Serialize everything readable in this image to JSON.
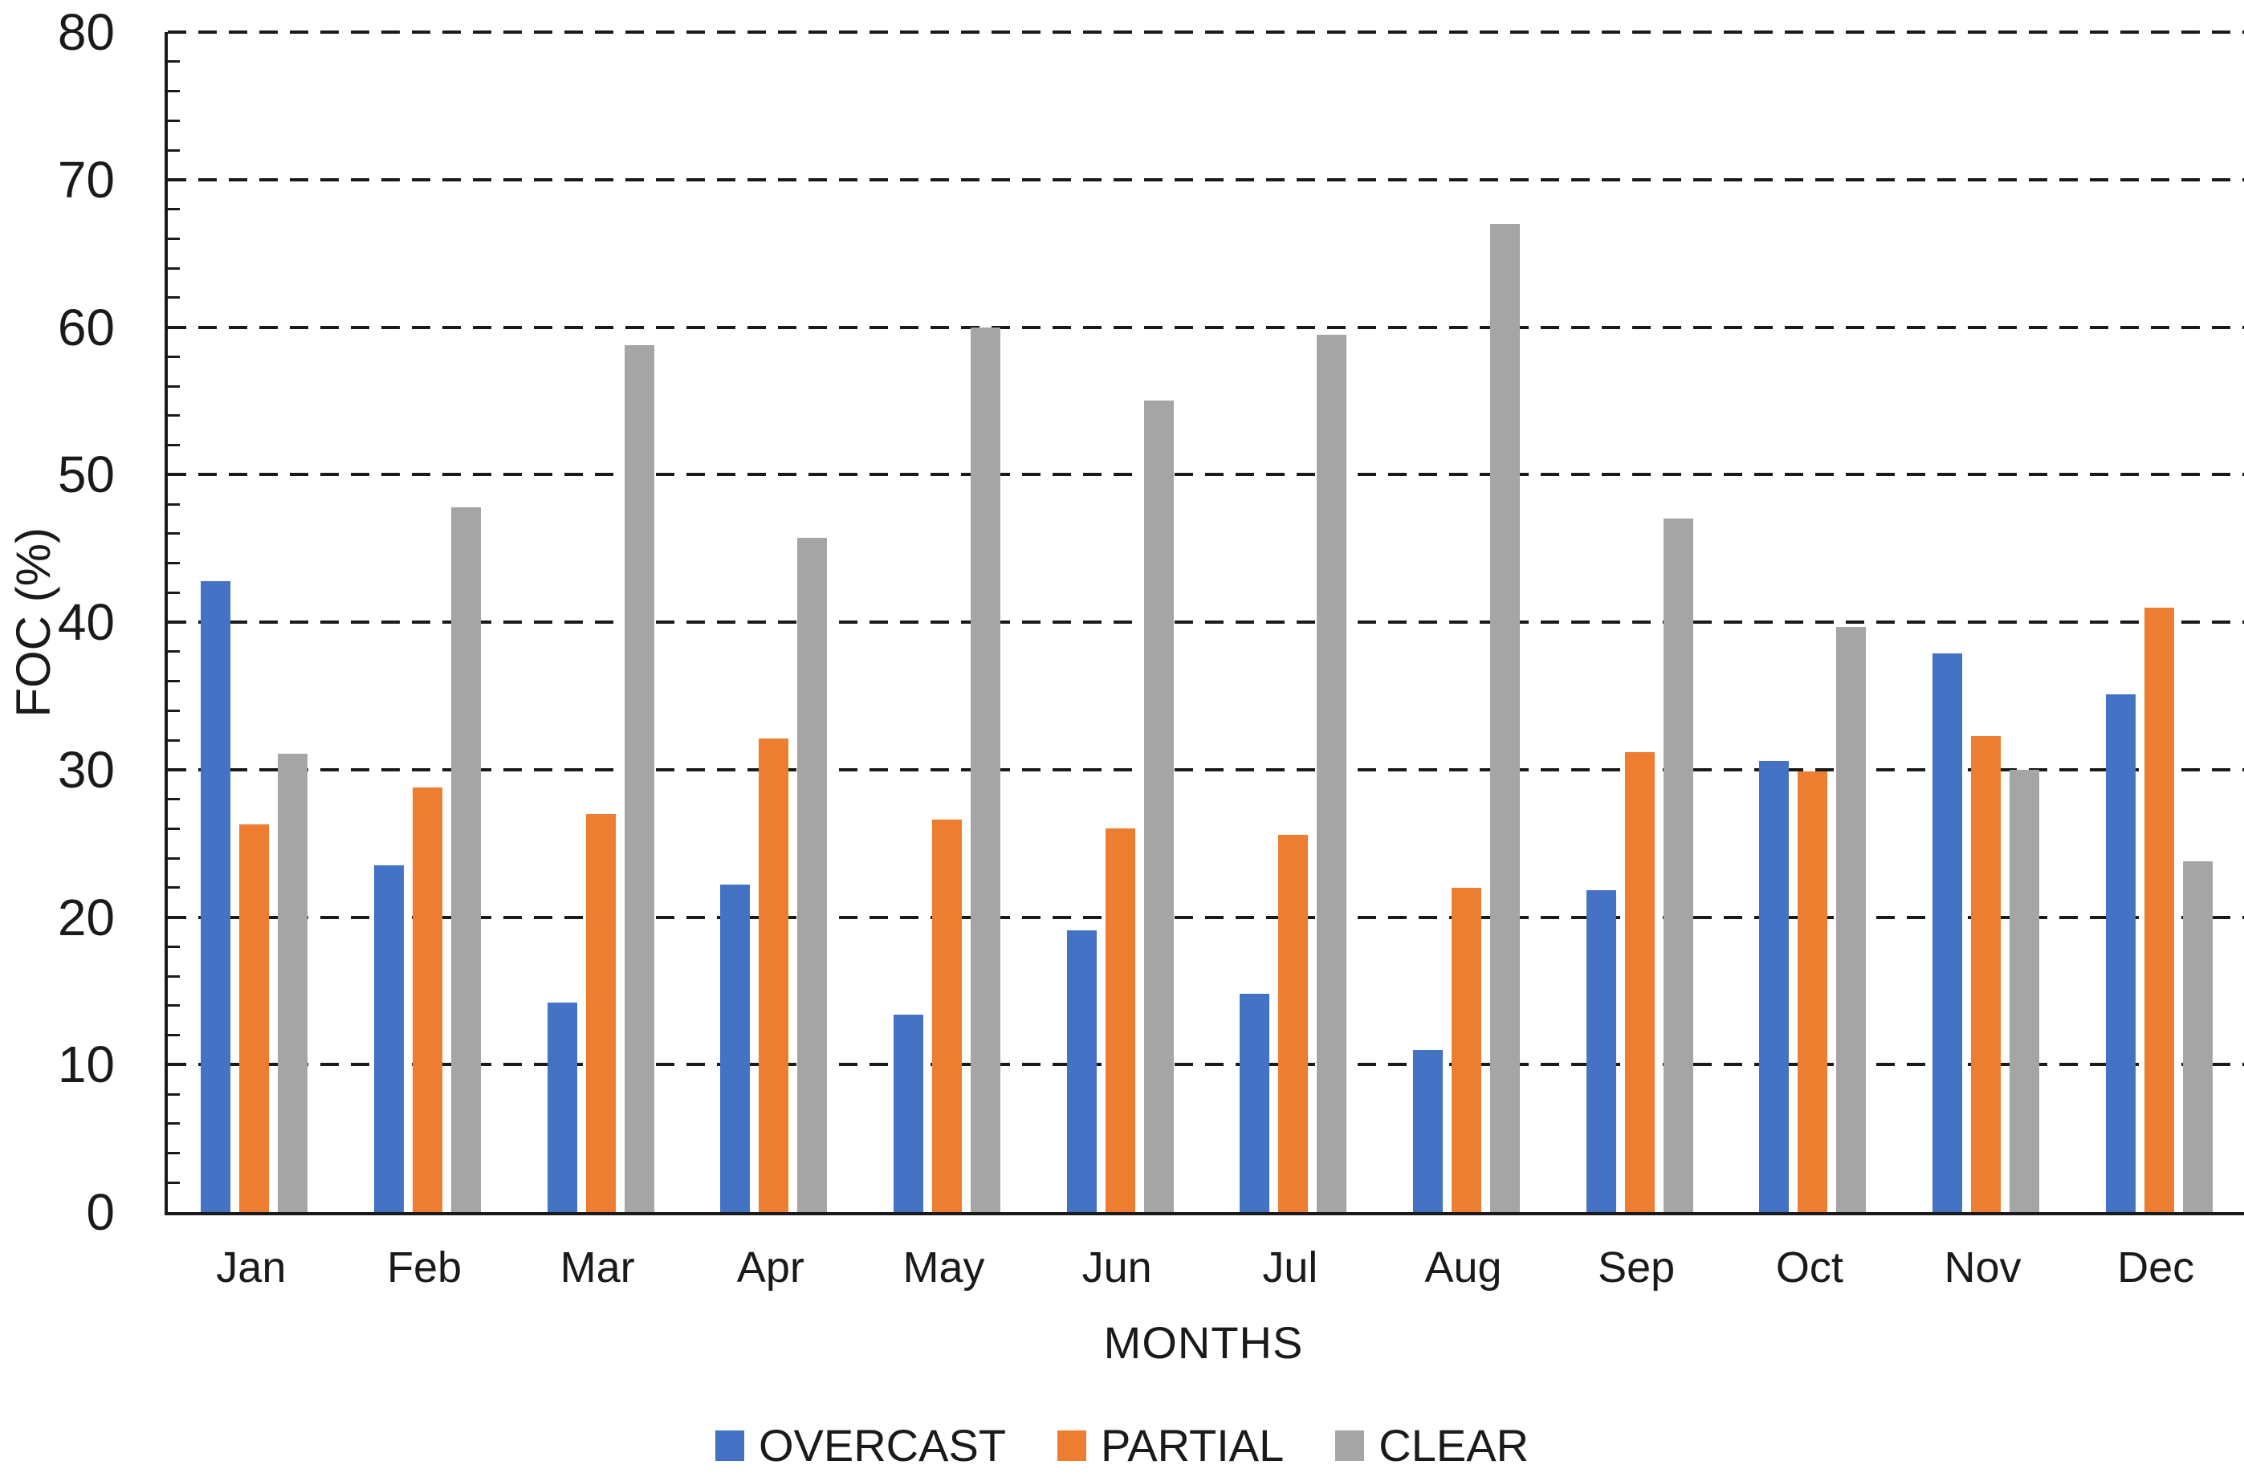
{
  "chart_data": {
    "type": "bar",
    "title": "",
    "xlabel": "MONTHS",
    "ylabel": "FOC (%)",
    "ylim": [
      0,
      80
    ],
    "yticks": [
      0,
      10,
      20,
      30,
      40,
      50,
      60,
      70,
      80
    ],
    "minor_tick_step": 2,
    "grid": "horizontal-dashed",
    "legend_position": "bottom",
    "categories": [
      "Jan",
      "Feb",
      "Mar",
      "Apr",
      "May",
      "Jun",
      "Jul",
      "Aug",
      "Sep",
      "Oct",
      "Nov",
      "Dec"
    ],
    "series": [
      {
        "name": "OVERCAST",
        "color": "#4472C4",
        "values": [
          42.8,
          23.5,
          14.2,
          22.2,
          13.4,
          19.1,
          14.8,
          11.0,
          21.8,
          30.6,
          37.9,
          35.1
        ]
      },
      {
        "name": "PARTIAL",
        "color": "#ED7D31",
        "values": [
          26.3,
          28.8,
          27.0,
          32.1,
          26.6,
          26.0,
          25.6,
          22.0,
          31.2,
          29.9,
          32.3,
          41.0
        ]
      },
      {
        "name": "CLEAR",
        "color": "#A5A5A5",
        "values": [
          31.1,
          47.8,
          58.8,
          45.7,
          60.0,
          55.0,
          59.5,
          67.0,
          47.0,
          39.7,
          30.0,
          23.8
        ]
      }
    ]
  }
}
